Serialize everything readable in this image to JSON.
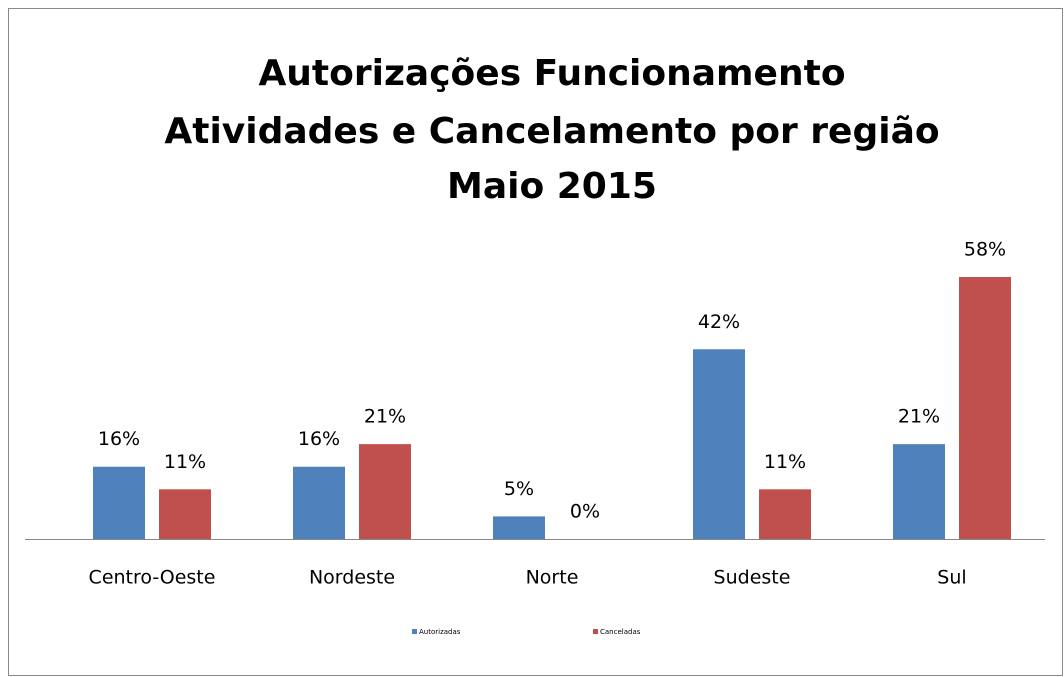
{
  "chart_data": {
    "type": "bar",
    "title": [
      "Autorizações Funcionamento",
      "Atividades e Cancelamento por região",
      "Maio 2015"
    ],
    "categories": [
      "Centro-Oeste",
      "Nordeste",
      "Norte",
      "Sudeste",
      "Sul"
    ],
    "series": [
      {
        "name": "Autorizadas",
        "color": "#4f81bd",
        "values": [
          16,
          16,
          5,
          42,
          21
        ],
        "value_labels": [
          "16%",
          "16%",
          "5%",
          "42%",
          "21%"
        ]
      },
      {
        "name": "Canceladas",
        "color": "#c0504d",
        "values": [
          11,
          21,
          0,
          11,
          58
        ],
        "value_labels": [
          "11%",
          "21%",
          "0%",
          "11%",
          "58%"
        ]
      }
    ],
    "legend": "bottom"
  }
}
